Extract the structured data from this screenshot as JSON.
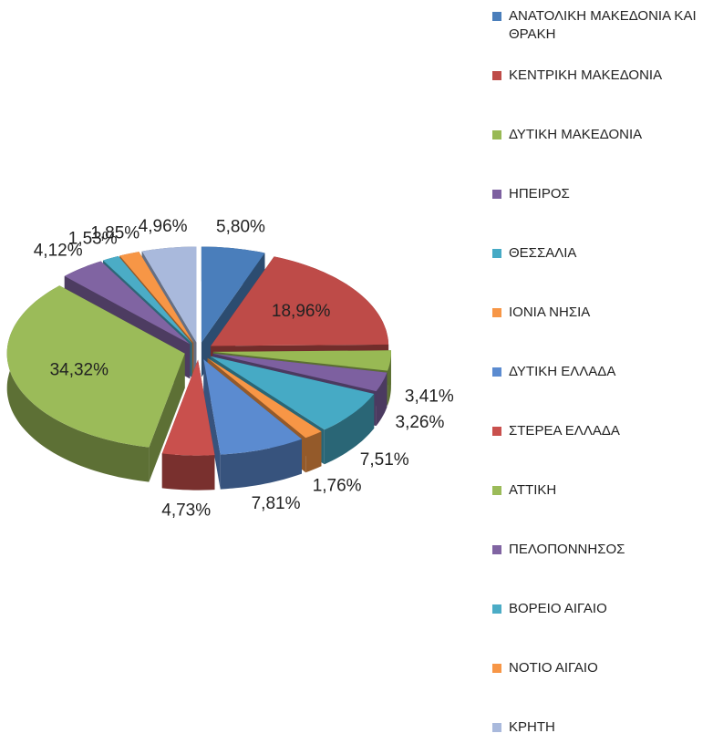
{
  "chart_data": {
    "type": "pie",
    "categories": [
      "ΑΝΑΤΟΛΙΚΗ ΜΑΚΕΔΟΝΙΑ ΚΑΙ ΘΡΑΚΗ",
      "ΚΕΝΤΡΙΚΗ ΜΑΚΕΔΟΝΙΑ",
      "ΔΥΤΙΚΗ ΜΑΚΕΔΟΝΙΑ",
      "ΗΠΕΙΡΟΣ",
      "ΘΕΣΣΑΛΙΑ",
      "ΙΟΝΙΑ ΝΗΣΙΑ",
      "ΔΥΤΙΚΗ ΕΛΛΑΔΑ",
      "ΣΤΕΡΕΑ ΕΛΛΑΔΑ",
      "ΑΤΤΙΚΗ",
      "ΠΕΛΟΠΟΝΝΗΣΟΣ",
      "ΒΟΡΕΙΟ ΑΙΓΑΙΟ",
      "ΝΟΤΙΟ ΑΙΓΑΙΟ",
      "ΚΡΗΤΗ"
    ],
    "values": [
      5.8,
      18.96,
      3.41,
      3.26,
      7.51,
      1.76,
      7.81,
      4.73,
      34.32,
      4.12,
      1.53,
      1.85,
      4.96
    ],
    "value_labels": [
      "5,80%",
      "18,96%",
      "3,41%",
      "3,26%",
      "7,51%",
      "1,76%",
      "7,81%",
      "4,73%",
      "34,32%",
      "4,12%",
      "1,53%",
      "1,85%",
      "4,96%"
    ],
    "colors": [
      "#4a7ebb",
      "#be4b48",
      "#98b954",
      "#7d60a0",
      "#46aac5",
      "#f79646",
      "#5b8bd0",
      "#c9504d",
      "#9bbb59",
      "#8064a2",
      "#4bacc6",
      "#f79646",
      "#a9b9dc"
    ],
    "legend": "right"
  }
}
